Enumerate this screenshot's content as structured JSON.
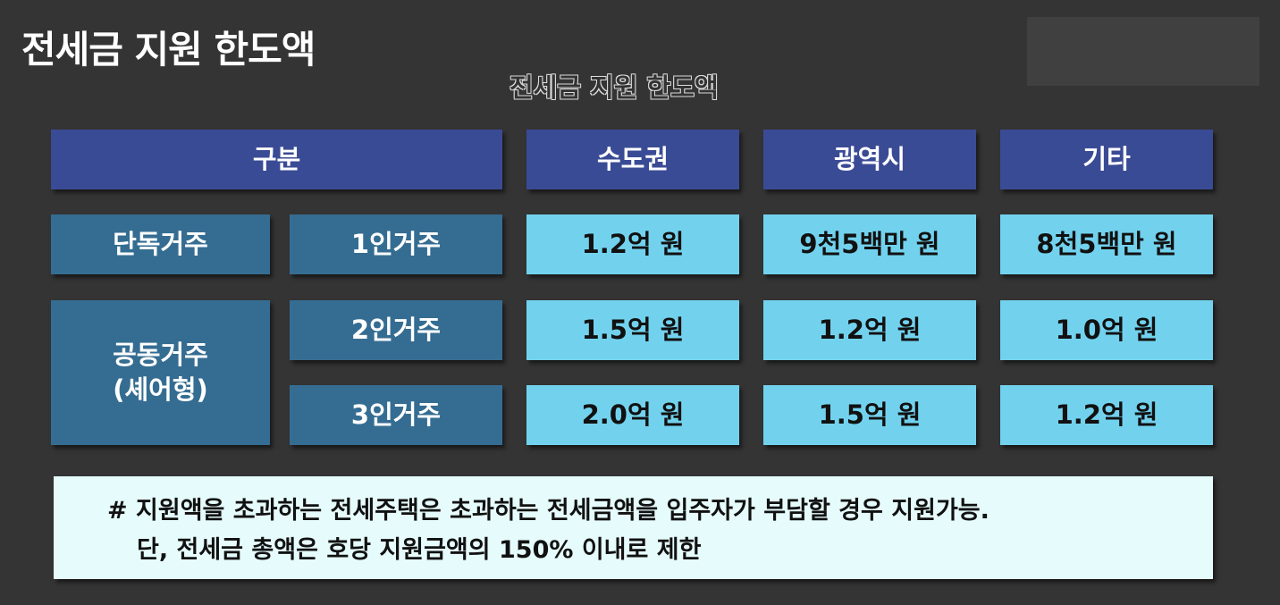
{
  "title": "전세금 지원 한도액",
  "table": {
    "caption": "전세금 지원 한도액",
    "headers": [
      "구분",
      "수도권",
      "광역시",
      "기타"
    ],
    "groups": [
      "단독거주",
      "공동거주\n(셰어형)"
    ],
    "rows": [
      {
        "type": "1인거주",
        "values": [
          "1.2억 원",
          "9천5백만 원",
          "8천5백만 원"
        ]
      },
      {
        "type": "2인거주",
        "values": [
          "1.5억 원",
          "1.2억 원",
          "1.0억 원"
        ]
      },
      {
        "type": "3인거주",
        "values": [
          "2.0억 원",
          "1.5억 원",
          "1.2억 원"
        ]
      }
    ]
  },
  "note": {
    "line1": "# 지원액을 초과하는 전세주택은 초과하는 전세금액을 입주자가 부담할 경우 지원가능.",
    "line2": "단, 전세금 총액은 호당 지원금액의 150% 이내로 제한"
  },
  "colors": {
    "background": "#343434",
    "header": "#3a4b95",
    "category": "#356d92",
    "value": "#72d2ee",
    "note": "#e6fbfb"
  }
}
